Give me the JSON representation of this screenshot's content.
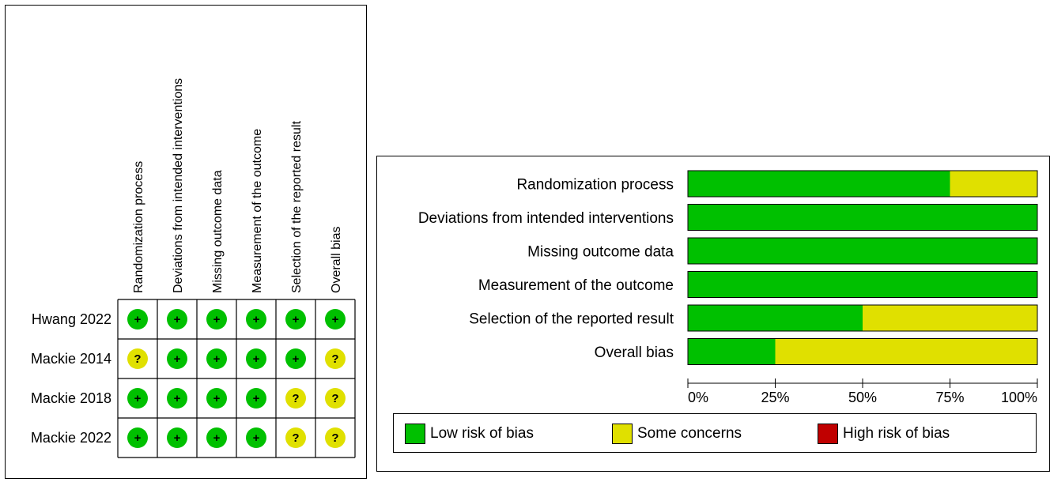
{
  "traffic_light": {
    "domains": [
      "Randomization process",
      "Deviations from intended interventions",
      "Missing outcome data",
      "Measurement of the outcome",
      "Selection of the reported result",
      "Overall bias"
    ],
    "studies": [
      {
        "name": "Hwang 2022",
        "judgements": [
          "low",
          "low",
          "low",
          "low",
          "low",
          "low"
        ]
      },
      {
        "name": "Mackie 2014",
        "judgements": [
          "some",
          "low",
          "low",
          "low",
          "low",
          "some"
        ]
      },
      {
        "name": "Mackie 2018",
        "judgements": [
          "low",
          "low",
          "low",
          "low",
          "some",
          "some"
        ]
      },
      {
        "name": "Mackie 2022",
        "judgements": [
          "low",
          "low",
          "low",
          "low",
          "some",
          "some"
        ]
      }
    ],
    "symbols": {
      "low": "+",
      "some": "?",
      "high": "-"
    }
  },
  "chart_data": {
    "type": "bar",
    "stacked": true,
    "orientation": "horizontal",
    "categories": [
      "Randomization process",
      "Deviations from intended interventions",
      "Missing outcome data",
      "Measurement of the outcome",
      "Selection of the reported result",
      "Overall bias"
    ],
    "series": [
      {
        "name": "Low risk of bias",
        "color": "#00c000",
        "values": [
          75,
          100,
          100,
          100,
          50,
          25
        ]
      },
      {
        "name": "Some concerns",
        "color": "#e0e000",
        "values": [
          25,
          0,
          0,
          0,
          50,
          75
        ]
      },
      {
        "name": "High risk of bias",
        "color": "#c00000",
        "values": [
          0,
          0,
          0,
          0,
          0,
          0
        ]
      }
    ],
    "xlim": [
      0,
      100
    ],
    "xticks": [
      0,
      25,
      50,
      75,
      100
    ],
    "xtick_labels": [
      "0%",
      "25%",
      "50%",
      "75%",
      "100%"
    ],
    "legend_position": "bottom"
  },
  "colors": {
    "low": "#00c000",
    "some": "#e0e000",
    "high": "#c00000"
  }
}
